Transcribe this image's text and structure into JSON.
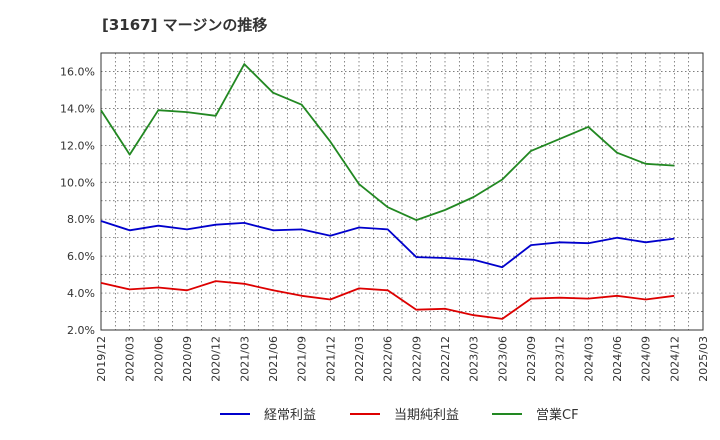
{
  "chart_data": {
    "type": "line",
    "title": "[3167]  マージンの推移",
    "x": [
      "2019/12",
      "2020/03",
      "2020/06",
      "2020/09",
      "2020/12",
      "2021/03",
      "2021/06",
      "2021/09",
      "2021/12",
      "2022/03",
      "2022/06",
      "2022/09",
      "2022/12",
      "2023/03",
      "2023/06",
      "2023/09",
      "2023/12",
      "2024/03",
      "2024/06",
      "2024/09",
      "2024/12"
    ],
    "x_ticks": [
      "2019/12",
      "2020/03",
      "2020/06",
      "2020/09",
      "2020/12",
      "2021/03",
      "2021/06",
      "2021/09",
      "2021/12",
      "2022/03",
      "2022/06",
      "2022/09",
      "2022/12",
      "2023/03",
      "2023/06",
      "2023/09",
      "2023/12",
      "2024/03",
      "2024/06",
      "2024/09",
      "2024/12",
      "2025/03"
    ],
    "y_ticks": [
      "2.0%",
      "4.0%",
      "6.0%",
      "8.0%",
      "10.0%",
      "12.0%",
      "14.0%",
      "16.0%"
    ],
    "ylim": [
      2,
      17
    ],
    "grid": true,
    "legend_position": "bottom",
    "series": [
      {
        "name": "経常利益",
        "color": "#0000cc",
        "values": [
          7.9,
          7.4,
          7.65,
          7.45,
          7.7,
          7.8,
          7.4,
          7.45,
          7.1,
          7.55,
          7.45,
          5.95,
          5.9,
          5.8,
          5.4,
          6.6,
          6.75,
          6.7,
          7.0,
          6.75,
          6.95
        ]
      },
      {
        "name": "当期純利益",
        "color": "#dd0000",
        "values": [
          4.55,
          4.2,
          4.3,
          4.15,
          4.65,
          4.5,
          4.15,
          3.85,
          3.65,
          4.25,
          4.15,
          3.1,
          3.15,
          2.8,
          2.6,
          3.7,
          3.75,
          3.7,
          3.85,
          3.65,
          3.85
        ]
      },
      {
        "name": "営業CF",
        "color": "#228822",
        "values": [
          13.9,
          11.5,
          13.9,
          13.8,
          13.6,
          16.4,
          14.85,
          14.2,
          12.2,
          9.9,
          8.65,
          7.95,
          8.5,
          9.2,
          10.15,
          11.7,
          12.35,
          13.0,
          11.6,
          11.0,
          10.9
        ]
      }
    ]
  }
}
